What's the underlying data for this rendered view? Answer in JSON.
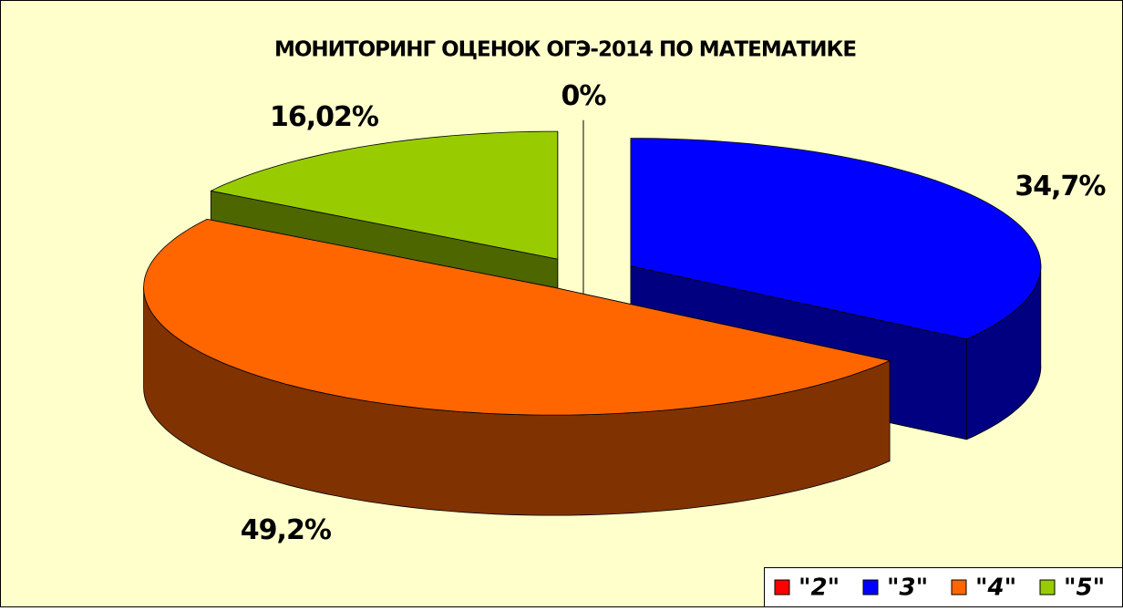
{
  "chart_data": {
    "type": "pie",
    "title": "МОНИТОРИНГ ОЦЕНОК ОГЭ-2014 ПО МАТЕМАТИКЕ",
    "categories": [
      "\"2\"",
      "\"3\"",
      "\"4\"",
      "\"5\""
    ],
    "values": [
      0,
      34.7,
      49.2,
      16.02
    ],
    "value_labels": [
      "0%",
      "34,7%",
      "49,2%",
      "16,02%"
    ],
    "colors": [
      "#ff0000",
      "#0000ff",
      "#ff6600",
      "#99cc00"
    ],
    "legend": "bottom-right"
  }
}
